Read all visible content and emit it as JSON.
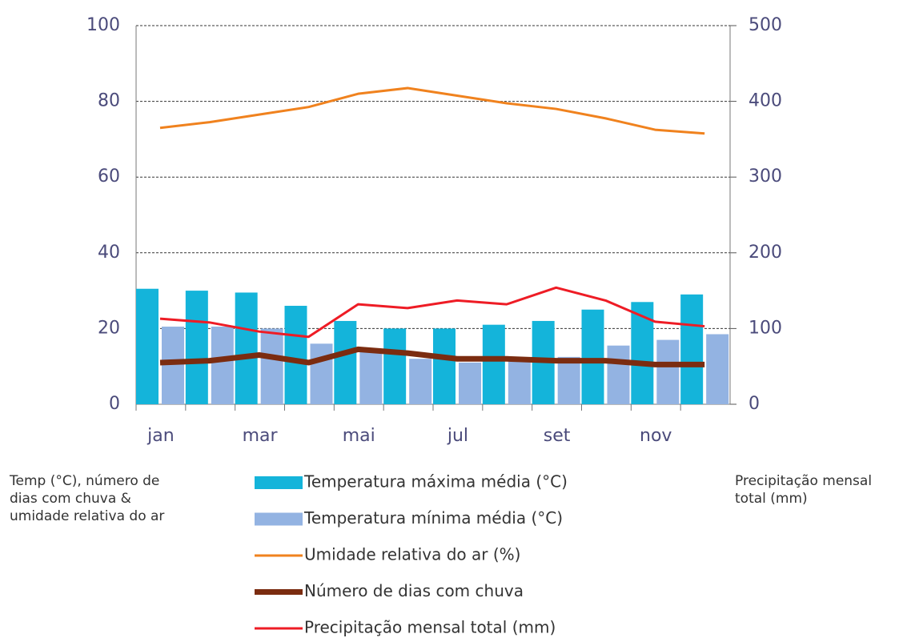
{
  "chart_data": {
    "type": "bar_line",
    "y_label": "Temp (°C), número de dias com chuva & umidade relativa do ar",
    "y2_label": "Precipitação mensal total (mm)",
    "categories": [
      "jan",
      null,
      "mar",
      null,
      "mai",
      null,
      "jul",
      null,
      "set",
      null,
      "nov",
      null
    ],
    "series": [
      {
        "name": "Temperatura máxima média (°C)",
        "kind": "bar",
        "color": "#14b4da",
        "values": [
          30.5,
          30,
          29.5,
          26,
          22,
          20,
          20,
          21,
          22,
          25,
          27,
          29
        ]
      },
      {
        "name": "Temperatura mínima média (°C)",
        "kind": "bar",
        "color": "#93b3e2",
        "values": [
          20.5,
          20.5,
          20,
          16,
          14.5,
          12,
          11,
          12,
          12.5,
          15.5,
          17,
          18.5
        ]
      },
      {
        "name": "Umidade relativa do ar (%)",
        "kind": "line",
        "color": "#f0821e",
        "width": 3,
        "values": [
          73,
          74.5,
          76.5,
          78.5,
          82,
          83.5,
          81.5,
          79.5,
          78,
          75.5,
          72.5,
          71.5
        ]
      },
      {
        "name": "Número de dias com chuva",
        "kind": "line",
        "color": "#7b2c10",
        "width": 7,
        "values": [
          11,
          11.5,
          13,
          11,
          14.5,
          13.5,
          12,
          12,
          11.5,
          11.5,
          10.5,
          10.5
        ]
      },
      {
        "name": "Precipitação mensal total (mm)",
        "kind": "line",
        "color": "#ee1c25",
        "width": 3,
        "axis": "y2",
        "values": [
          113,
          108,
          96,
          89,
          132,
          127,
          137,
          132,
          154,
          137,
          109,
          103
        ]
      }
    ],
    "ylim": [
      0,
      100
    ],
    "yticks": [
      0,
      20,
      40,
      60,
      80,
      100
    ],
    "y2lim": [
      0,
      500
    ],
    "y2ticks": [
      0,
      100,
      200,
      300,
      400,
      500
    ],
    "grid": true
  }
}
